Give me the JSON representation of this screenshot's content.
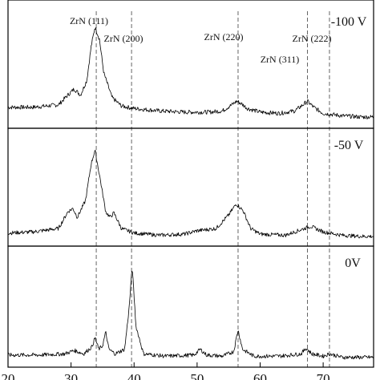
{
  "chart_data": {
    "type": "line",
    "xlabel": "",
    "ylabel": "",
    "xlim": [
      20,
      78
    ],
    "x_ticks": [
      "20",
      "30",
      "40",
      "50",
      "60",
      "70"
    ],
    "reference_lines": [
      {
        "x": 34.0,
        "label": "ZrN (111)"
      },
      {
        "x": 39.6,
        "label": "ZrN (200)"
      },
      {
        "x": 56.5,
        "label": "ZrN (220)"
      },
      {
        "x": 67.5,
        "label": "ZrN (311)"
      },
      {
        "x": 71.0,
        "label": "ZrN (222)"
      }
    ],
    "series": [
      {
        "name": "-100 V",
        "x": [
          20,
          24,
          28,
          29.5,
          30.5,
          31.5,
          32.5,
          33.2,
          33.8,
          34.5,
          35.2,
          36.5,
          38,
          40,
          44,
          48,
          52,
          54,
          55.5,
          56.3,
          57,
          58,
          60,
          63,
          65.5,
          66.8,
          67.5,
          68.5,
          70,
          73,
          76,
          78
        ],
        "y": [
          0.12,
          0.12,
          0.14,
          0.22,
          0.27,
          0.22,
          0.34,
          0.62,
          0.78,
          0.68,
          0.4,
          0.2,
          0.13,
          0.11,
          0.09,
          0.08,
          0.08,
          0.09,
          0.14,
          0.17,
          0.15,
          0.11,
          0.08,
          0.07,
          0.09,
          0.14,
          0.17,
          0.12,
          0.07,
          0.05,
          0.04,
          0.04
        ]
      },
      {
        "name": "-50 V",
        "x": [
          20,
          24,
          28,
          29.5,
          30.3,
          31,
          32.3,
          33.2,
          33.8,
          34.6,
          35.5,
          36.2,
          36.8,
          38,
          40,
          44,
          48,
          50,
          53,
          55,
          56.2,
          57.3,
          58.5,
          60,
          64,
          67,
          68,
          70,
          73,
          76,
          78
        ],
        "y": [
          0.06,
          0.07,
          0.1,
          0.25,
          0.28,
          0.2,
          0.35,
          0.68,
          0.8,
          0.55,
          0.25,
          0.2,
          0.24,
          0.1,
          0.06,
          0.04,
          0.05,
          0.08,
          0.1,
          0.22,
          0.32,
          0.26,
          0.1,
          0.05,
          0.04,
          0.1,
          0.12,
          0.07,
          0.04,
          0.03,
          0.03
        ]
      },
      {
        "name": "0V",
        "x": [
          20,
          25,
          29,
          30.5,
          32,
          33.3,
          33.8,
          34.4,
          35.0,
          35.5,
          36.0,
          37,
          38.5,
          39.2,
          39.7,
          40.3,
          41.5,
          45,
          49.5,
          50.5,
          51.5,
          54,
          55.8,
          56.5,
          57.2,
          59,
          63,
          66.5,
          67.3,
          68.2,
          70,
          71,
          73,
          78
        ],
        "y": [
          0.05,
          0.05,
          0.06,
          0.09,
          0.06,
          0.12,
          0.2,
          0.1,
          0.13,
          0.25,
          0.1,
          0.06,
          0.1,
          0.45,
          0.82,
          0.3,
          0.06,
          0.04,
          0.05,
          0.1,
          0.05,
          0.04,
          0.08,
          0.27,
          0.1,
          0.04,
          0.04,
          0.06,
          0.11,
          0.06,
          0.04,
          0.06,
          0.03,
          0.03
        ]
      }
    ]
  }
}
